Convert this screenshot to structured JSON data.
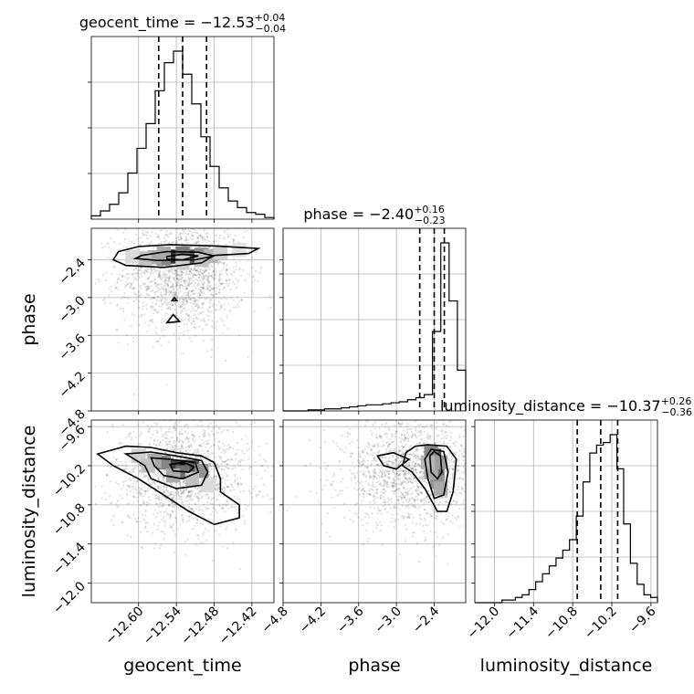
{
  "chart_data": {
    "type": "corner",
    "parameters": [
      {
        "name": "geocent_time",
        "axis_label": "geocent_time",
        "range": [
          -12.675,
          -12.385
        ],
        "ticks": [
          -12.6,
          -12.54,
          -12.48,
          -12.42
        ],
        "tick_labels": [
          "−12.60",
          "−12.54",
          "−12.48",
          "−12.42"
        ],
        "median": -12.53,
        "plus": "+0.04",
        "minus": "−0.04",
        "quantiles": [
          -12.568,
          -12.53,
          -12.492
        ],
        "title_prefix": "geocent_time = −12.53",
        "hist": [
          2,
          5,
          9,
          16,
          28,
          43,
          58,
          78,
          95,
          102,
          88,
          70,
          50,
          32,
          19,
          11,
          7,
          4,
          3,
          1
        ]
      },
      {
        "name": "phase",
        "axis_label": "phase",
        "range": [
          -4.8,
          -1.9
        ],
        "ticks": [
          -4.8,
          -4.2,
          -3.6,
          -3.0,
          -2.4
        ],
        "tick_labels": [
          "−4.8",
          "−4.2",
          "−3.6",
          "−3.0",
          "−2.4"
        ],
        "median": -2.4,
        "plus": "+0.16",
        "minus": "−0.23",
        "quantiles": [
          -2.63,
          -2.4,
          -2.24
        ],
        "title_prefix": "phase = −2.40",
        "hist": [
          0,
          0,
          0,
          1,
          1,
          2,
          2,
          3,
          4,
          5,
          6,
          6,
          7,
          8,
          9,
          11,
          13,
          16,
          78,
          165,
          108,
          40
        ]
      },
      {
        "name": "luminosity_distance",
        "axis_label": "luminosity_distance",
        "range": [
          -12.3,
          -9.5
        ],
        "ticks": [
          -12.0,
          -11.4,
          -10.8,
          -10.2,
          -9.6
        ],
        "tick_labels": [
          "−12.0",
          "−11.4",
          "−10.8",
          "−10.2",
          "−9.6"
        ],
        "median": -10.37,
        "plus": "+0.26",
        "minus": "−0.36",
        "quantiles": [
          -10.73,
          -10.37,
          -10.11
        ],
        "title_prefix": "luminosity_distance = −10.37",
        "hist": [
          0,
          0,
          0,
          0,
          1,
          1,
          2,
          3,
          5,
          8,
          11,
          14,
          17,
          20,
          24,
          33,
          46,
          57,
          60,
          61,
          64,
          51,
          30,
          15,
          7,
          3,
          2
        ]
      }
    ],
    "panels": [
      {
        "x": "geocent_time",
        "y": "phase",
        "contours": [
          [
            [
              -12.632,
              -2.27
            ],
            [
              -12.6,
              -2.19
            ],
            [
              -12.55,
              -2.16
            ],
            [
              -12.48,
              -2.18
            ],
            [
              -12.41,
              -2.22
            ],
            [
              -12.425,
              -2.3
            ],
            [
              -12.48,
              -2.33
            ],
            [
              -12.5,
              -2.45
            ],
            [
              -12.56,
              -2.52
            ],
            [
              -12.62,
              -2.49
            ],
            [
              -12.64,
              -2.4
            ]
          ],
          [
            [
              -12.595,
              -2.33
            ],
            [
              -12.555,
              -2.27
            ],
            [
              -12.505,
              -2.28
            ],
            [
              -12.48,
              -2.34
            ],
            [
              -12.51,
              -2.4
            ],
            [
              -12.57,
              -2.41
            ],
            [
              -12.605,
              -2.38
            ]
          ],
          [
            [
              -12.555,
              -2.35
            ],
            [
              -12.53,
              -2.31
            ],
            [
              -12.505,
              -2.34
            ],
            [
              -12.53,
              -2.4
            ],
            [
              -12.555,
              -2.39
            ]
          ],
          [
            [
              -12.547,
              -3.05
            ],
            [
              -12.543,
              -3.0
            ],
            [
              -12.539,
              -3.05
            ]
          ],
          [
            [
              -12.555,
              -3.4
            ],
            [
              -12.545,
              -3.27
            ],
            [
              -12.535,
              -3.38
            ]
          ]
        ],
        "density": [
          [
            -12.53,
            -2.35,
            1.0
          ],
          [
            -12.545,
            -2.35,
            0.85
          ],
          [
            -12.515,
            -2.35,
            0.7
          ],
          [
            -12.53,
            -2.3,
            0.55
          ],
          [
            -12.56,
            -2.38,
            0.5
          ],
          [
            -12.5,
            -2.32,
            0.45
          ],
          [
            -12.575,
            -2.36,
            0.35
          ],
          [
            -12.485,
            -2.34,
            0.3
          ],
          [
            -12.59,
            -2.38,
            0.25
          ],
          [
            -12.56,
            -2.3,
            0.35
          ],
          [
            -12.5,
            -2.4,
            0.25
          ],
          [
            -12.47,
            -2.28,
            0.2
          ],
          [
            -12.61,
            -2.35,
            0.15
          ],
          [
            -12.53,
            -2.45,
            0.2
          ],
          [
            -12.44,
            -2.24,
            0.12
          ]
        ],
        "scatter": {
          "cx": -12.53,
          "cy": -2.65,
          "sx": 0.05,
          "sy": 0.45,
          "n": 1500
        }
      },
      {
        "x": "geocent_time",
        "y": "luminosity_distance",
        "contours": [
          [
            [
              -12.665,
              -10.02
            ],
            [
              -12.62,
              -9.9
            ],
            [
              -12.58,
              -9.92
            ],
            [
              -12.54,
              -10.0
            ],
            [
              -12.5,
              -10.05
            ],
            [
              -12.48,
              -10.15
            ],
            [
              -12.47,
              -10.4
            ],
            [
              -12.47,
              -10.6
            ],
            [
              -12.44,
              -10.8
            ],
            [
              -12.44,
              -11.0
            ],
            [
              -12.48,
              -11.1
            ],
            [
              -12.52,
              -10.9
            ],
            [
              -12.56,
              -10.65
            ],
            [
              -12.6,
              -10.4
            ],
            [
              -12.64,
              -10.2
            ]
          ],
          [
            [
              -12.62,
              -10.02
            ],
            [
              -12.58,
              -9.99
            ],
            [
              -12.54,
              -10.05
            ],
            [
              -12.5,
              -10.12
            ],
            [
              -12.49,
              -10.3
            ],
            [
              -12.5,
              -10.5
            ],
            [
              -12.54,
              -10.55
            ],
            [
              -12.58,
              -10.4
            ],
            [
              -12.59,
              -10.2
            ]
          ],
          [
            [
              -12.58,
              -10.08
            ],
            [
              -12.55,
              -10.1
            ],
            [
              -12.51,
              -10.15
            ],
            [
              -12.505,
              -10.3
            ],
            [
              -12.53,
              -10.4
            ],
            [
              -12.56,
              -10.35
            ],
            [
              -12.575,
              -10.2
            ]
          ],
          [
            [
              -12.55,
              -10.18
            ],
            [
              -12.528,
              -10.15
            ],
            [
              -12.512,
              -10.22
            ],
            [
              -12.52,
              -10.3
            ],
            [
              -12.545,
              -10.28
            ]
          ]
        ],
        "density": [
          [
            -12.53,
            -10.22,
            1.0
          ],
          [
            -12.545,
            -10.22,
            0.8
          ],
          [
            -12.515,
            -10.22,
            0.7
          ],
          [
            -12.53,
            -10.3,
            0.6
          ],
          [
            -12.56,
            -10.15,
            0.5
          ],
          [
            -12.5,
            -10.28,
            0.45
          ],
          [
            -12.575,
            -10.12,
            0.35
          ],
          [
            -12.545,
            -10.35,
            0.35
          ],
          [
            -12.515,
            -10.4,
            0.25
          ],
          [
            -12.6,
            -10.05,
            0.2
          ],
          [
            -12.585,
            -10.2,
            0.25
          ],
          [
            -12.49,
            -10.5,
            0.15
          ]
        ],
        "scatter": {
          "cx": -12.53,
          "cy": -10.35,
          "sx": 0.055,
          "sy": 0.42,
          "n": 1500
        }
      },
      {
        "x": "phase",
        "y": "luminosity_distance",
        "contours": [
          [
            [
              -2.85,
              -10.0
            ],
            [
              -2.7,
              -9.9
            ],
            [
              -2.5,
              -9.88
            ],
            [
              -2.2,
              -9.9
            ],
            [
              -2.05,
              -10.1
            ],
            [
              -2.1,
              -10.6
            ],
            [
              -2.2,
              -10.9
            ],
            [
              -2.35,
              -10.9
            ],
            [
              -2.55,
              -10.55
            ],
            [
              -2.75,
              -10.3
            ],
            [
              -2.9,
              -10.2
            ]
          ],
          [
            [
              -2.55,
              -10.1
            ],
            [
              -2.45,
              -9.95
            ],
            [
              -2.25,
              -9.98
            ],
            [
              -2.18,
              -10.3
            ],
            [
              -2.25,
              -10.65
            ],
            [
              -2.4,
              -10.7
            ],
            [
              -2.5,
              -10.4
            ]
          ],
          [
            [
              -2.47,
              -10.05
            ],
            [
              -2.4,
              -9.98
            ],
            [
              -2.3,
              -10.05
            ],
            [
              -2.28,
              -10.3
            ],
            [
              -2.35,
              -10.4
            ],
            [
              -2.45,
              -10.3
            ]
          ],
          [
            [
              -3.3,
              -10.05
            ],
            [
              -3.05,
              -10.0
            ],
            [
              -2.8,
              -10.1
            ],
            [
              -3.0,
              -10.25
            ],
            [
              -3.2,
              -10.2
            ]
          ]
        ],
        "density": [
          [
            -2.4,
            -10.15,
            1.0
          ],
          [
            -2.4,
            -10.25,
            0.85
          ],
          [
            -2.4,
            -10.05,
            0.75
          ],
          [
            -2.35,
            -10.35,
            0.6
          ],
          [
            -2.45,
            -10.0,
            0.5
          ],
          [
            -2.35,
            -10.45,
            0.45
          ],
          [
            -2.3,
            -10.55,
            0.35
          ],
          [
            -2.45,
            -10.3,
            0.35
          ],
          [
            -2.3,
            -10.15,
            0.4
          ],
          [
            -2.5,
            -10.15,
            0.3
          ]
        ],
        "scatter": {
          "cx": -2.75,
          "cy": -10.3,
          "sx": 0.55,
          "sy": 0.4,
          "n": 1500
        }
      }
    ]
  }
}
